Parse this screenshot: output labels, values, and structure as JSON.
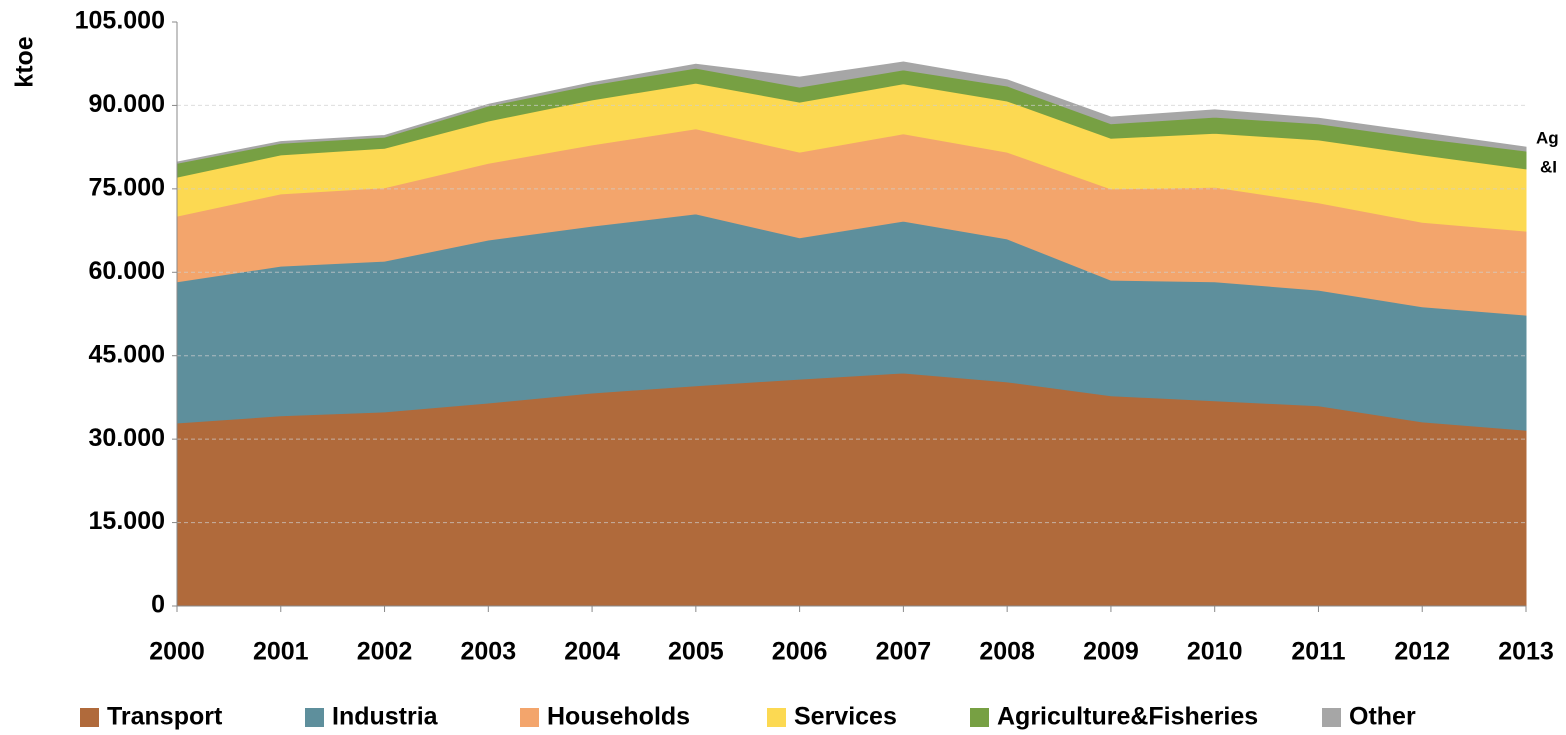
{
  "chart_data": {
    "type": "stacked-area",
    "y_label": "ktoe",
    "annotation": [
      "Ag",
      "&I"
    ],
    "categories": [
      "2000",
      "2001",
      "2002",
      "2003",
      "2004",
      "2005",
      "2006",
      "2007",
      "2008",
      "2009",
      "2010",
      "2011",
      "2012",
      "2013"
    ],
    "series": [
      {
        "name": "Transport",
        "color": "#b06a3b",
        "values": [
          32.9,
          34.2,
          34.9,
          36.5,
          38.3,
          39.6,
          40.8,
          41.9,
          40.3,
          37.8,
          36.9,
          36.0,
          33.1,
          31.6
        ]
      },
      {
        "name": "Industria",
        "color": "#5e8f9c",
        "values": [
          25.4,
          26.9,
          27.1,
          29.3,
          30.0,
          30.9,
          25.4,
          27.3,
          25.7,
          20.8,
          21.4,
          20.8,
          20.7,
          20.7
        ]
      },
      {
        "name": "Households",
        "color": "#f3a56c",
        "values": [
          11.8,
          13.0,
          13.2,
          13.8,
          14.6,
          15.3,
          15.4,
          15.7,
          15.6,
          16.4,
          17.0,
          15.7,
          15.2,
          15.1
        ]
      },
      {
        "name": "Services",
        "color": "#fcd952",
        "values": [
          7.0,
          7.0,
          7.1,
          7.6,
          8.1,
          8.2,
          9.0,
          9.0,
          9.2,
          9.1,
          9.7,
          11.3,
          12.1,
          11.2
        ]
      },
      {
        "name": "Agriculture&Fisheries",
        "color": "#77a043",
        "values": [
          2.5,
          2.1,
          2.0,
          2.7,
          2.7,
          2.7,
          2.7,
          2.5,
          2.7,
          2.6,
          2.9,
          2.9,
          3.0,
          3.2
        ]
      },
      {
        "name": "Other",
        "color": "#a6a6a6",
        "values": [
          0.2,
          0.3,
          0.3,
          0.3,
          0.4,
          0.7,
          1.8,
          1.4,
          1.1,
          1.2,
          1.3,
          1.0,
          1.0,
          0.7
        ]
      }
    ],
    "ylim": [
      0,
      105
    ],
    "yticks": [
      0,
      {
        "value": 15,
        "label": "15.000"
      },
      {
        "value": 30,
        "label": "30.000"
      },
      {
        "value": 45,
        "label": "45.000"
      },
      {
        "value": 60,
        "label": "60.000"
      },
      {
        "value": 75,
        "label": "75.000"
      },
      {
        "value": 90,
        "label": "90.000"
      },
      {
        "value": 105,
        "label": "105.000"
      }
    ],
    "grid": true,
    "legend": "bottom"
  }
}
